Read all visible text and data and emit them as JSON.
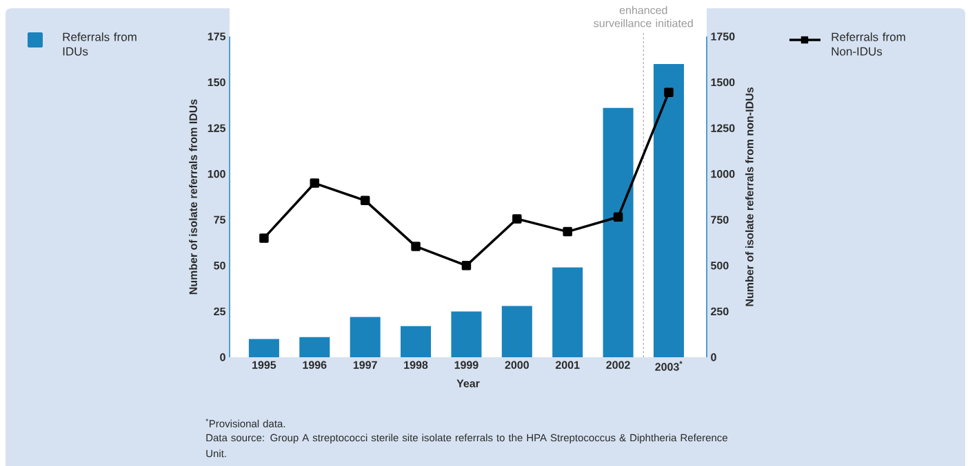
{
  "chart_data": {
    "type": "bar",
    "categories": [
      "1995",
      "1996",
      "1997",
      "1998",
      "1999",
      "2000",
      "2001",
      "2002",
      "2003$^{*}$"
    ],
    "xlabel": "Year",
    "ylabel": "Number of isolate referrals from IDUs",
    "y2label": "Number of isolate referrals from non-IDUs",
    "ylim": [
      0,
      175
    ],
    "yticks": [
      0,
      25,
      50,
      75,
      100,
      125,
      150,
      175
    ],
    "y2lim": [
      0,
      1750
    ],
    "y2ticks": [
      0,
      250,
      500,
      750,
      1000,
      1250,
      1500,
      1750
    ],
    "series": [
      {
        "name": "Referrals from IDUs",
        "color": "#1b83bc",
        "values": [
          10,
          11,
          22,
          17,
          25,
          28,
          49,
          136,
          160
        ]
      },
      {
        "name": "Referrals from Non-IDUs",
        "type": "line",
        "axis": "y2",
        "color": "#000000",
        "marker": "square",
        "line_style": "solid",
        "values": [
          650,
          950,
          855,
          605,
          500,
          755,
          685,
          765,
          1445
        ]
      }
    ],
    "annotations": [
      "enhanced surveillance initiated",
      "$^{*}$Provisional data.",
      "Data source: Group A streptococci sterile site isolate referrals to the HPA Streptococcus & Diphtheria Reference Unit."
    ],
    "legend": "top",
    "grid": false
  }
}
